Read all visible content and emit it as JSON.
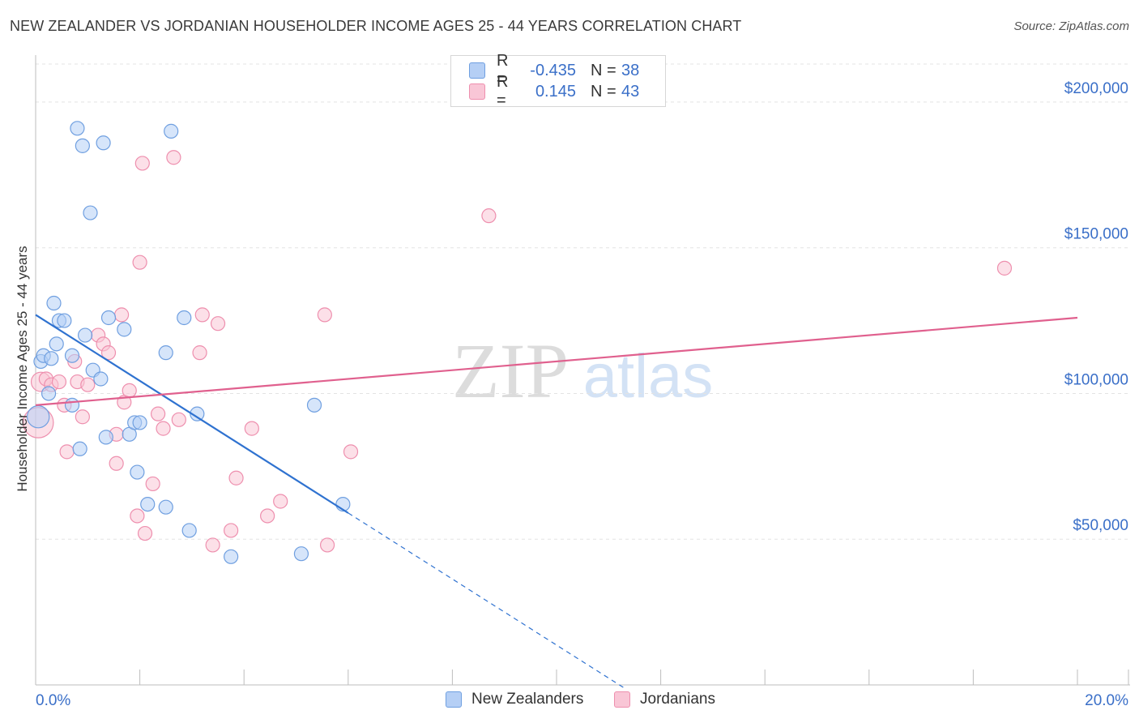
{
  "title": "NEW ZEALANDER VS JORDANIAN HOUSEHOLDER INCOME AGES 25 - 44 YEARS CORRELATION CHART",
  "source": "Source: ZipAtlas.com",
  "watermark": {
    "zip": "ZIP",
    "atlas": "atlas"
  },
  "colors": {
    "blue_fill": "#b5cff5",
    "blue_stroke": "#6f9fe0",
    "blue_line": "#2f72d0",
    "pink_fill": "#f9c6d6",
    "pink_stroke": "#ee8fae",
    "pink_line": "#e0608e",
    "axis_text": "#3a6fc8",
    "grid": "#e3e3e3"
  },
  "legend": {
    "rows": [
      {
        "label": "R =",
        "r_value": "-0.435",
        "n_label": "N =",
        "n_value": "38",
        "series": "blue"
      },
      {
        "label": "R =",
        "r_value": "0.145",
        "n_label": "N =",
        "n_value": "43",
        "series": "pink"
      }
    ]
  },
  "bottom_legend": [
    {
      "name": "New Zealanders",
      "series": "blue"
    },
    {
      "name": "Jordanians",
      "series": "pink"
    }
  ],
  "chart_data": {
    "type": "scatter",
    "title": "NEW ZEALANDER VS JORDANIAN HOUSEHOLDER INCOME AGES 25 - 44 YEARS CORRELATION CHART",
    "xlabel": "",
    "ylabel": "Householder Income Ages 25 - 44 years",
    "xlim": [
      0,
      20
    ],
    "ylim": [
      0,
      215000
    ],
    "x_tick_labels": {
      "left": "0.0%",
      "right": "20.0%"
    },
    "y_ticks": [
      {
        "value": 50000,
        "label": "$50,000"
      },
      {
        "value": 100000,
        "label": "$100,000"
      },
      {
        "value": 150000,
        "label": "$150,000"
      },
      {
        "value": 200000,
        "label": "$200,000"
      }
    ],
    "series": [
      {
        "name": "New Zealanders",
        "color": "blue",
        "r": -0.435,
        "n": 38,
        "trend": {
          "x0": 0.0,
          "y0": 127000,
          "x1": 6.0,
          "y1": 59000,
          "dash_to_x": 11.3
        },
        "points": [
          [
            0.05,
            92000,
            1.6
          ],
          [
            0.1,
            111000,
            1
          ],
          [
            0.15,
            113000,
            1
          ],
          [
            0.25,
            100000,
            1
          ],
          [
            0.3,
            112000,
            1
          ],
          [
            0.35,
            131000,
            1
          ],
          [
            0.4,
            117000,
            1
          ],
          [
            0.45,
            125000,
            1
          ],
          [
            0.55,
            125000,
            1
          ],
          [
            0.7,
            96000,
            1
          ],
          [
            0.7,
            113000,
            1
          ],
          [
            0.85,
            81000,
            1
          ],
          [
            0.8,
            191000,
            1
          ],
          [
            0.9,
            185000,
            1
          ],
          [
            0.95,
            120000,
            1
          ],
          [
            1.05,
            162000,
            1
          ],
          [
            1.1,
            108000,
            1
          ],
          [
            1.25,
            105000,
            1
          ],
          [
            1.3,
            186000,
            1
          ],
          [
            1.35,
            85000,
            1
          ],
          [
            1.4,
            126000,
            1
          ],
          [
            1.7,
            122000,
            1
          ],
          [
            1.8,
            86000,
            1
          ],
          [
            1.9,
            90000,
            1
          ],
          [
            1.95,
            73000,
            1
          ],
          [
            2.0,
            90000,
            1
          ],
          [
            2.15,
            62000,
            1
          ],
          [
            2.5,
            114000,
            1
          ],
          [
            2.5,
            61000,
            1
          ],
          [
            2.6,
            190000,
            1
          ],
          [
            2.85,
            126000,
            1
          ],
          [
            2.95,
            53000,
            1
          ],
          [
            3.1,
            93000,
            1
          ],
          [
            3.75,
            44000,
            1
          ],
          [
            5.1,
            45000,
            1
          ],
          [
            5.35,
            96000,
            1
          ],
          [
            5.9,
            62000,
            1
          ]
        ]
      },
      {
        "name": "Jordanians",
        "color": "pink",
        "r": 0.145,
        "n": 43,
        "trend": {
          "x0": 0.0,
          "y0": 96000,
          "x1": 20.0,
          "y1": 126000
        },
        "points": [
          [
            0.05,
            90000,
            2.2
          ],
          [
            0.1,
            104000,
            1.4
          ],
          [
            0.2,
            105000,
            1
          ],
          [
            0.3,
            103000,
            1
          ],
          [
            0.45,
            104000,
            1
          ],
          [
            0.55,
            96000,
            1
          ],
          [
            0.6,
            80000,
            1
          ],
          [
            0.75,
            111000,
            1
          ],
          [
            0.8,
            104000,
            1
          ],
          [
            0.9,
            92000,
            1
          ],
          [
            1.0,
            103000,
            1
          ],
          [
            1.2,
            120000,
            1
          ],
          [
            1.3,
            117000,
            1
          ],
          [
            1.4,
            114000,
            1
          ],
          [
            1.55,
            86000,
            1
          ],
          [
            1.55,
            76000,
            1
          ],
          [
            1.65,
            127000,
            1
          ],
          [
            1.7,
            97000,
            1
          ],
          [
            1.8,
            101000,
            1
          ],
          [
            1.95,
            58000,
            1
          ],
          [
            2.0,
            145000,
            1
          ],
          [
            2.05,
            179000,
            1
          ],
          [
            2.1,
            52000,
            1
          ],
          [
            2.25,
            69000,
            1
          ],
          [
            2.35,
            93000,
            1
          ],
          [
            2.45,
            88000,
            1
          ],
          [
            2.65,
            181000,
            1
          ],
          [
            2.75,
            91000,
            1
          ],
          [
            3.15,
            114000,
            1
          ],
          [
            3.2,
            127000,
            1
          ],
          [
            3.4,
            48000,
            1
          ],
          [
            3.5,
            124000,
            1
          ],
          [
            3.75,
            53000,
            1
          ],
          [
            3.85,
            71000,
            1
          ],
          [
            4.15,
            88000,
            1
          ],
          [
            4.45,
            58000,
            1
          ],
          [
            4.7,
            63000,
            1
          ],
          [
            5.55,
            127000,
            1
          ],
          [
            5.6,
            48000,
            1
          ],
          [
            6.05,
            80000,
            1
          ],
          [
            8.7,
            161000,
            1
          ],
          [
            18.6,
            143000,
            1
          ]
        ]
      }
    ]
  }
}
